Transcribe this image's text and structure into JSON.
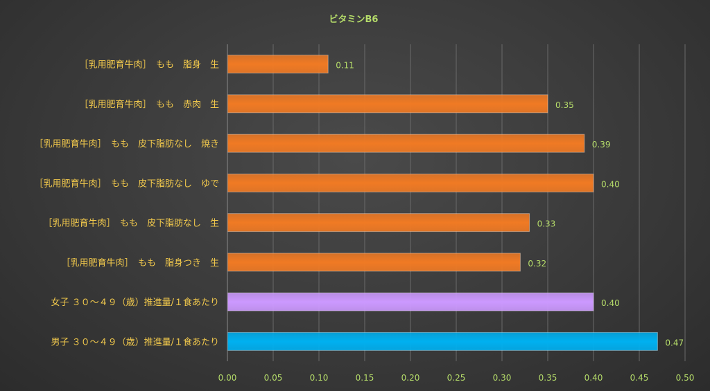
{
  "chart_data": {
    "type": "bar",
    "orientation": "horizontal",
    "title": "ビタミンB6",
    "categories": [
      "［乳用肥育牛肉］　もも　脂身　生",
      "［乳用肥育牛肉］　もも　赤肉　生",
      "［乳用肥育牛肉］　もも　皮下脂肪なし　焼き",
      "［乳用肥育牛肉］　もも　皮下脂肪なし　ゆで",
      "［乳用肥育牛肉］　もも　皮下脂肪なし　生",
      "［乳用肥育牛肉］　もも　脂身つき　生",
      "女子 ３０～４９（歳）推進量/１食あたり",
      "男子 ３０～４９（歳）推進量/１食あたり"
    ],
    "values": [
      0.11,
      0.35,
      0.39,
      0.4,
      0.33,
      0.32,
      0.4,
      0.47
    ],
    "value_labels": [
      "0.11",
      "0.35",
      "0.39",
      "0.40",
      "0.33",
      "0.32",
      "0.40",
      "0.47"
    ],
    "bar_colors": [
      "#f07a24",
      "#f07a24",
      "#f07a24",
      "#f07a24",
      "#f07a24",
      "#f07a24",
      "#cc99ff",
      "#00b0f0"
    ],
    "xlim": [
      0,
      0.5
    ],
    "xticks": [
      "0.00",
      "0.05",
      "0.10",
      "0.15",
      "0.20",
      "0.25",
      "0.30",
      "0.35",
      "0.40",
      "0.45",
      "0.50"
    ],
    "grid": true,
    "colors": {
      "title": "#b6dd6a",
      "category_label": "#f2c94c",
      "tick_label": "#b6dd6a",
      "data_label": "#b6dd6a"
    }
  }
}
